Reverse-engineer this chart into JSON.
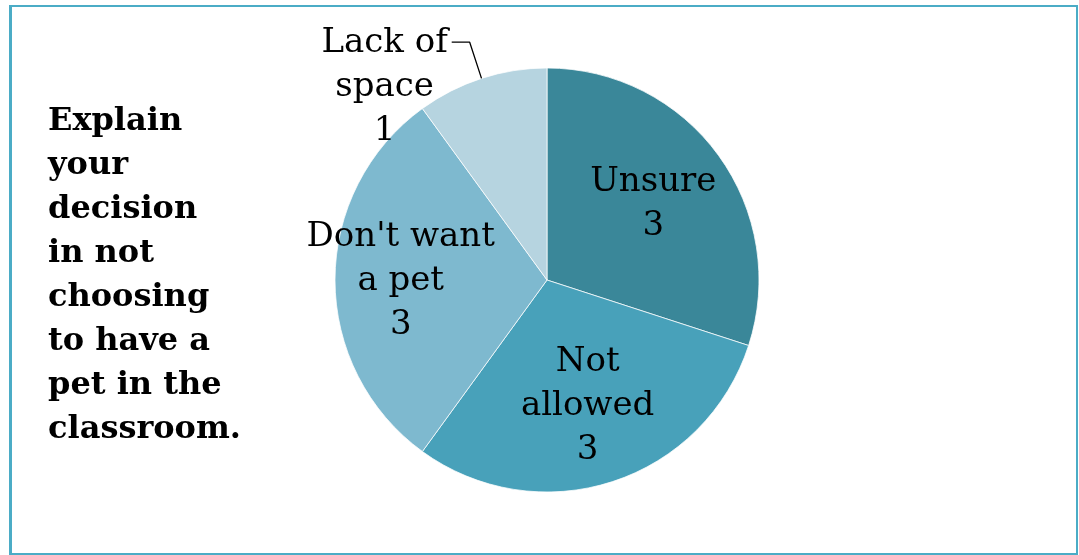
{
  "chart_data": {
    "type": "pie",
    "title": "Explain your decision in not choosing to have a pet in the classroom.",
    "categories": [
      "Unsure",
      "Not allowed",
      "Don't want a pet",
      "Lack of space"
    ],
    "values": [
      3,
      3,
      3,
      1
    ],
    "colors": [
      "#3a8799",
      "#48a1ba",
      "#7eb9cf",
      "#b6d4e0"
    ],
    "data_labels": true
  }
}
